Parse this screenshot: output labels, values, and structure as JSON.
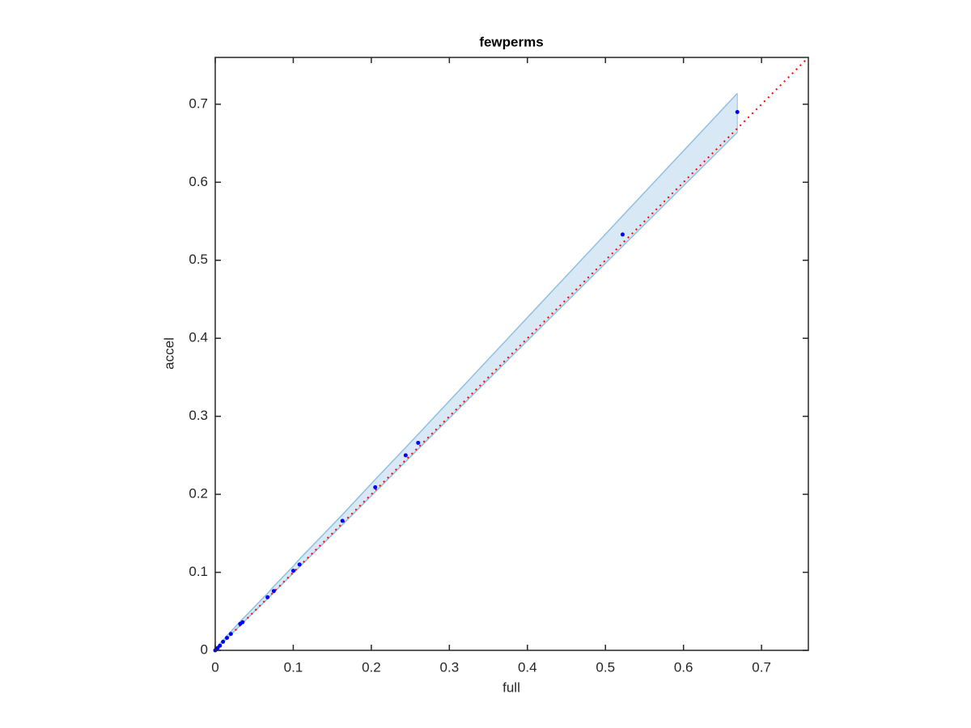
{
  "chart_data": {
    "type": "scatter",
    "title": "fewperms",
    "x_label": "full",
    "y_label": "accel",
    "x": [
      0,
      0.001,
      0.003,
      0.006,
      0.01,
      0.015,
      0.02,
      0.032,
      0.035,
      0.067,
      0.075,
      0.1,
      0.108,
      0.163,
      0.205,
      0.244,
      0.26,
      0.522,
      0.669
    ],
    "y": [
      0,
      0.001,
      0.003,
      0.006,
      0.011,
      0.016,
      0.021,
      0.034,
      0.036,
      0.068,
      0.076,
      0.102,
      0.11,
      0.166,
      0.209,
      0.25,
      0.266,
      0.533,
      0.69
    ],
    "color": "#0000ff",
    "band": {
      "x": [
        0,
        0.001,
        0.003,
        0.006,
        0.01,
        0.015,
        0.02,
        0.032,
        0.035,
        0.067,
        0.075,
        0.1,
        0.108,
        0.163,
        0.205,
        0.244,
        0.26,
        0.522,
        0.669
      ],
      "upper": [
        0,
        0.002,
        0.005,
        0.009,
        0.013,
        0.019,
        0.024,
        0.037,
        0.04,
        0.073,
        0.082,
        0.108,
        0.117,
        0.174,
        0.219,
        0.26,
        0.277,
        0.557,
        0.714
      ],
      "lower": [
        0,
        0.001,
        0.003,
        0.006,
        0.01,
        0.015,
        0.02,
        0.032,
        0.035,
        0.066,
        0.074,
        0.099,
        0.107,
        0.161,
        0.203,
        0.242,
        0.258,
        0.518,
        0.664
      ],
      "color": "#8fbfe0",
      "fill": "#d9e8f5"
    },
    "reference_line": {
      "x": [
        0,
        0.76
      ],
      "y": [
        0,
        0.76
      ],
      "color": "#ff0000"
    },
    "xlim": [
      0,
      0.76
    ],
    "ylim": [
      0,
      0.76
    ],
    "xticks": [
      0,
      0.1,
      0.2,
      0.3,
      0.4,
      0.5,
      0.6,
      0.7
    ],
    "yticks": [
      0,
      0.1,
      0.2,
      0.3,
      0.4,
      0.5,
      0.6,
      0.7
    ]
  }
}
